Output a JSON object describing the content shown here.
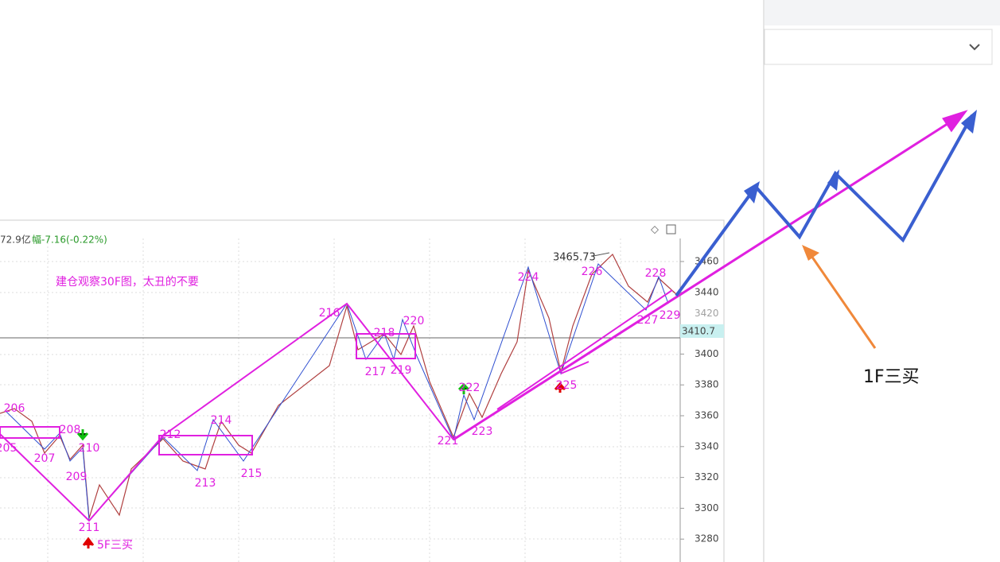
{
  "header": {
    "info_prefix": "72.9亿",
    "change": "幅-7.16(-0.22%)"
  },
  "annotations": {
    "note": "建仓观察30F图，太丑的不要",
    "buy5f": "5F三买",
    "buy1f": "1F三买",
    "high": "3465.73"
  },
  "axis": {
    "ticks": [
      "3460",
      "3440",
      "3420",
      "3400",
      "3380",
      "3360",
      "3340",
      "3320",
      "3300",
      "3280"
    ],
    "current": "3410.7"
  },
  "points": [
    "205",
    "206",
    "207",
    "208",
    "209",
    "210",
    "211",
    "212",
    "213",
    "214",
    "215",
    "216",
    "217",
    "218",
    "219",
    "220",
    "221",
    "222",
    "223",
    "224",
    "225",
    "226",
    "227",
    "228",
    "229"
  ]
}
